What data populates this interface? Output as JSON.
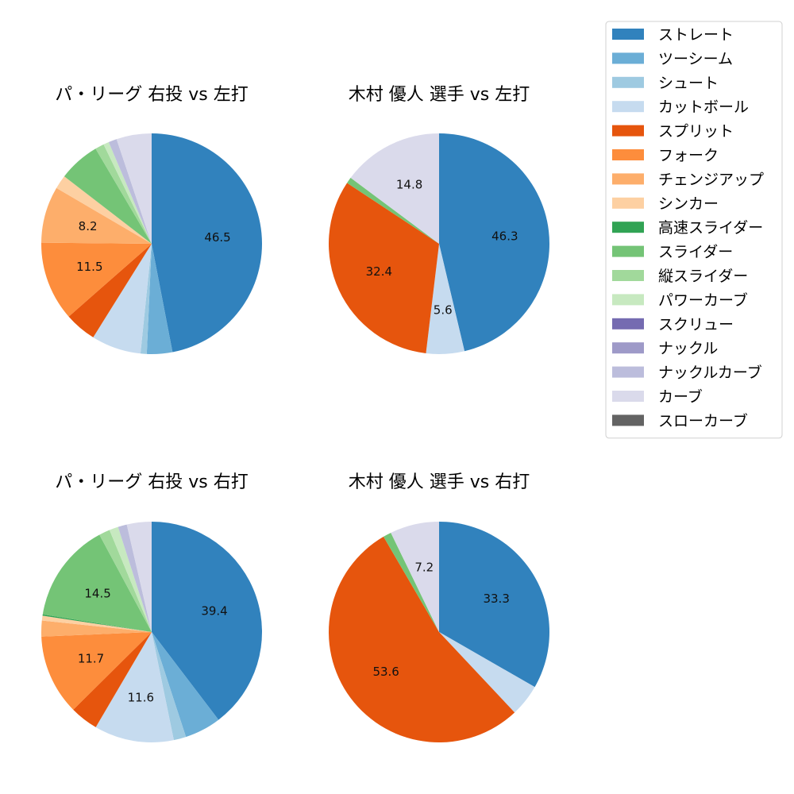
{
  "chart_data": [
    {
      "type": "pie",
      "title": "パ・リーグ 右投 vs 左打",
      "slices": [
        {
          "label": "ストレート",
          "value": 46.5,
          "color": "#3182bd",
          "shown_label": "46.5"
        },
        {
          "label": "ツーシーム",
          "value": 3.7,
          "color": "#6baed6"
        },
        {
          "label": "シュート",
          "value": 0.9,
          "color": "#9ecae1"
        },
        {
          "label": "カットボール",
          "value": 7.2,
          "color": "#c6dbef"
        },
        {
          "label": "スプリット",
          "value": 4.6,
          "color": "#e6550d"
        },
        {
          "label": "フォーク",
          "value": 11.5,
          "color": "#fd8d3c",
          "shown_label": "11.5"
        },
        {
          "label": "チェンジアップ",
          "value": 8.2,
          "color": "#fdae6b",
          "shown_label": "8.2"
        },
        {
          "label": "シンカー",
          "value": 2.0,
          "color": "#fdd0a2"
        },
        {
          "label": "スライダー",
          "value": 6.0,
          "color": "#74c476"
        },
        {
          "label": "縦スライダー",
          "value": 1.3,
          "color": "#a1d99b"
        },
        {
          "label": "パワーカーブ",
          "value": 0.8,
          "color": "#c7e9c0"
        },
        {
          "label": "ナックルカーブ",
          "value": 1.2,
          "color": "#bcbddc"
        },
        {
          "label": "カーブ",
          "value": 5.1,
          "color": "#dadaeb"
        }
      ]
    },
    {
      "type": "pie",
      "title": "木村 優人 選手 vs 左打",
      "slices": [
        {
          "label": "ストレート",
          "value": 46.3,
          "color": "#3182bd",
          "shown_label": "46.3"
        },
        {
          "label": "カットボール",
          "value": 5.6,
          "color": "#c6dbef",
          "shown_label": "5.6"
        },
        {
          "label": "スプリット",
          "value": 32.4,
          "color": "#e6550d",
          "shown_label": "32.4"
        },
        {
          "label": "スライダー",
          "value": 0.9,
          "color": "#74c476"
        },
        {
          "label": "カーブ",
          "value": 14.8,
          "color": "#dadaeb",
          "shown_label": "14.8"
        }
      ]
    },
    {
      "type": "pie",
      "title": "パ・リーグ 右投 vs 右打",
      "slices": [
        {
          "label": "ストレート",
          "value": 39.4,
          "color": "#3182bd",
          "shown_label": "39.4"
        },
        {
          "label": "ツーシーム",
          "value": 5.3,
          "color": "#6baed6"
        },
        {
          "label": "シュート",
          "value": 1.8,
          "color": "#9ecae1"
        },
        {
          "label": "カットボール",
          "value": 11.6,
          "color": "#c6dbef",
          "shown_label": "11.6"
        },
        {
          "label": "スプリット",
          "value": 4.1,
          "color": "#e6550d"
        },
        {
          "label": "フォーク",
          "value": 11.7,
          "color": "#fd8d3c",
          "shown_label": "11.7"
        },
        {
          "label": "チェンジアップ",
          "value": 2.3,
          "color": "#fdae6b"
        },
        {
          "label": "シンカー",
          "value": 0.7,
          "color": "#fdd0a2"
        },
        {
          "label": "高速スライダー",
          "value": 0.2,
          "color": "#31a354"
        },
        {
          "label": "スライダー",
          "value": 14.5,
          "color": "#74c476",
          "shown_label": "14.5"
        },
        {
          "label": "縦スライダー",
          "value": 1.6,
          "color": "#a1d99b"
        },
        {
          "label": "パワーカーブ",
          "value": 1.3,
          "color": "#c7e9c0"
        },
        {
          "label": "ナックルカーブ",
          "value": 1.3,
          "color": "#bcbddc"
        },
        {
          "label": "カーブ",
          "value": 3.6,
          "color": "#dadaeb"
        }
      ]
    },
    {
      "type": "pie",
      "title": "木村 優人 選手 vs 右打",
      "slices": [
        {
          "label": "ストレート",
          "value": 33.3,
          "color": "#3182bd",
          "shown_label": "33.3"
        },
        {
          "label": "カットボール",
          "value": 4.7,
          "color": "#c6dbef"
        },
        {
          "label": "スプリット",
          "value": 53.6,
          "color": "#e6550d",
          "shown_label": "53.6"
        },
        {
          "label": "スライダー",
          "value": 1.2,
          "color": "#74c476"
        },
        {
          "label": "カーブ",
          "value": 7.2,
          "color": "#dadaeb",
          "shown_label": "7.2"
        }
      ]
    }
  ],
  "legend": {
    "placement": "top-right",
    "items": [
      {
        "label": "ストレート",
        "color": "#3182bd"
      },
      {
        "label": "ツーシーム",
        "color": "#6baed6"
      },
      {
        "label": "シュート",
        "color": "#9ecae1"
      },
      {
        "label": "カットボール",
        "color": "#c6dbef"
      },
      {
        "label": "スプリット",
        "color": "#e6550d"
      },
      {
        "label": "フォーク",
        "color": "#fd8d3c"
      },
      {
        "label": "チェンジアップ",
        "color": "#fdae6b"
      },
      {
        "label": "シンカー",
        "color": "#fdd0a2"
      },
      {
        "label": "高速スライダー",
        "color": "#31a354"
      },
      {
        "label": "スライダー",
        "color": "#74c476"
      },
      {
        "label": "縦スライダー",
        "color": "#a1d99b"
      },
      {
        "label": "パワーカーブ",
        "color": "#c7e9c0"
      },
      {
        "label": "スクリュー",
        "color": "#756bb1"
      },
      {
        "label": "ナックル",
        "color": "#9e9ac8"
      },
      {
        "label": "ナックルカーブ",
        "color": "#bcbddc"
      },
      {
        "label": "カーブ",
        "color": "#dadaeb"
      },
      {
        "label": "スローカーブ",
        "color": "#636363"
      }
    ]
  }
}
